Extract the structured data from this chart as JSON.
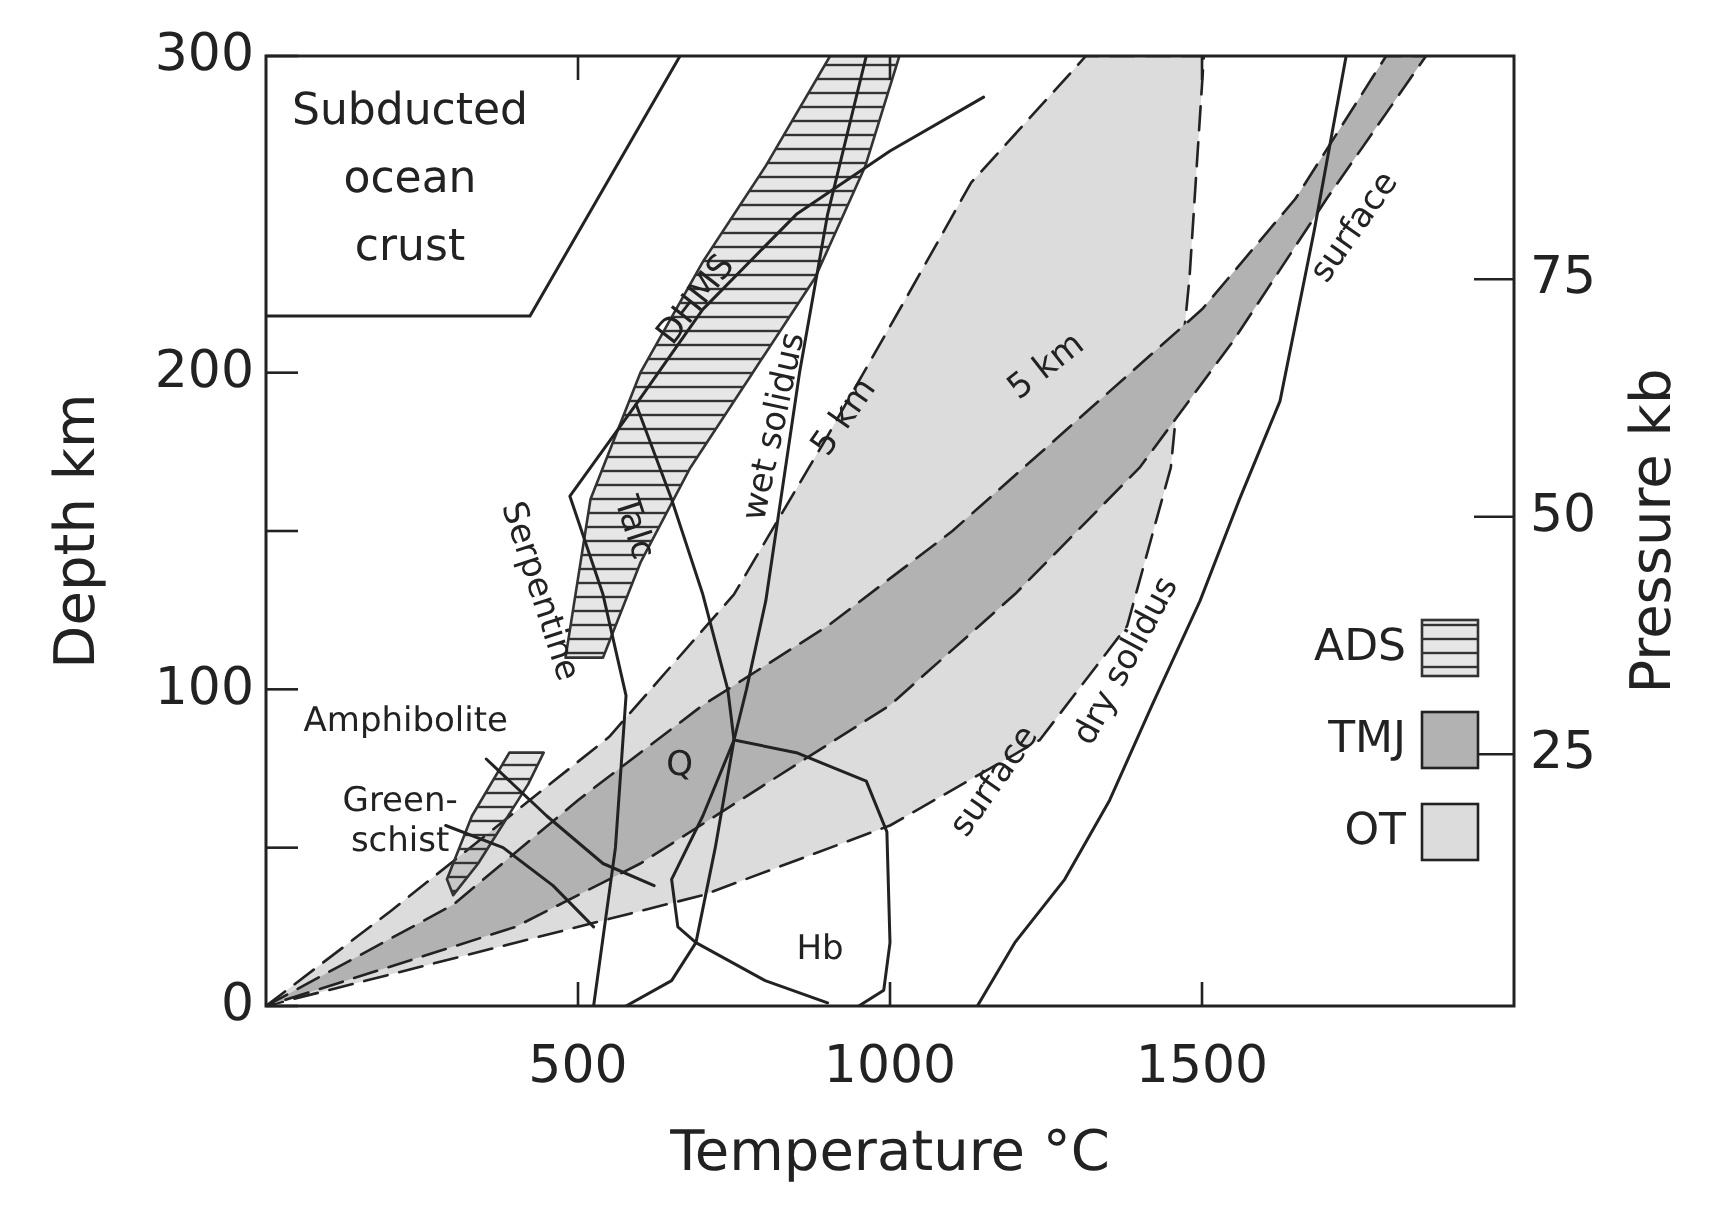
{
  "chart_data": {
    "type": "line",
    "xlabel": "Temperature °C",
    "ylabel": "Depth km",
    "y2label": "Pressure kb",
    "xlim": [
      0,
      2000
    ],
    "xticks": [
      500,
      1000,
      1500
    ],
    "ylim": [
      0,
      300
    ],
    "yticks": [
      0,
      {
        "value": 50,
        "label": null
      },
      100,
      {
        "value": 150,
        "label": null
      },
      200,
      300
    ],
    "y2lim": [
      -1.5,
      98.5
    ],
    "y2ticks": [
      25,
      50,
      75
    ],
    "legend": "right",
    "series": [
      {
        "name": "OT",
        "type": "area",
        "color": "#dcdcdc",
        "line_style": "dashed",
        "x": [
          0,
          200,
          550,
          750,
          900,
          1030,
          1130,
          1314,
          1503,
          1480,
          1450,
          1380,
          1240,
          1000,
          700,
          400,
          0
        ],
        "values": [
          0,
          30,
          85,
          130,
          180,
          225,
          260,
          300,
          300,
          230,
          170,
          120,
          84,
          57,
          35,
          20,
          0
        ]
      },
      {
        "name": "TMJ",
        "type": "area",
        "color": "#b2b2b2",
        "line_style": "dashed",
        "x": [
          0,
          300,
          500,
          700,
          900,
          1100,
          1300,
          1500,
          1650,
          1795,
          1859,
          1700,
          1550,
          1400,
          1200,
          1000,
          800,
          600,
          400,
          0
        ],
        "values": [
          0,
          32,
          65,
          95,
          120,
          150,
          185,
          220,
          255,
          300,
          300,
          255,
          210,
          170,
          130,
          95,
          70,
          45,
          25,
          0
        ]
      },
      {
        "name": "ADS",
        "type": "area",
        "color": "#333333",
        "line_style": "solid",
        "x": [
          480,
          520,
          600,
          700,
          800,
          904,
          1015,
          960,
          880,
          780,
          680,
          600,
          540,
          480,
          null,
          300,
          340,
          420,
          445,
          390,
          330,
          290,
          300
        ],
        "values": [
          110,
          160,
          200,
          235,
          265,
          300,
          300,
          265,
          230,
          200,
          170,
          140,
          110,
          110,
          null,
          35,
          45,
          70,
          80,
          80,
          60,
          40,
          35
        ]
      },
      {
        "color": "#222222",
        "x": [
          1140,
          1200,
          1280,
          1352,
          1420,
          1497,
          1560,
          1625,
          1680,
          1731
        ],
        "values": [
          0,
          20,
          40,
          65,
          95,
          128,
          160,
          191,
          245,
          300
        ]
      },
      {
        "color": "#222222",
        "x": [
          577,
          650,
          689,
          720,
          750,
          770,
          801,
          855,
          900,
          962
        ],
        "values": [
          0,
          8,
          20,
          50,
          84,
          100,
          128,
          200,
          250,
          300
        ]
      },
      {
        "color": "#222222",
        "x": [
          1150,
          1000,
          850,
          700,
          593,
          487,
          540,
          577,
          560,
          525
        ],
        "values": [
          287,
          270,
          250,
          220,
          190,
          161,
          130,
          98,
          50,
          0
        ]
      },
      {
        "color": "#222222",
        "x": [
          593,
          650,
          700,
          740,
          750,
          850,
          962,
          995,
          1000,
          990,
          950
        ],
        "values": [
          190,
          160,
          130,
          100,
          84,
          80,
          71,
          55,
          20,
          5,
          0
        ]
      },
      {
        "color": "#222222",
        "x": [
          750,
          700,
          650,
          660,
          689,
          800,
          900
        ],
        "values": [
          84,
          60,
          40,
          25,
          20,
          8,
          1
        ]
      },
      {
        "color": "#222222",
        "x": [
          353,
          450,
          540,
          622
        ],
        "values": [
          78,
          60,
          45,
          38
        ]
      },
      {
        "color": "#222222",
        "x": [
          288,
          380,
          460,
          525
        ],
        "values": [
          57,
          50,
          38,
          25
        ]
      }
    ],
    "annotations": [
      "Subducted ocean crust",
      "DHMS",
      "wet solidus",
      "5 km",
      "5 km",
      "surface",
      "surface",
      "dry solidus",
      "Talc",
      "Serpentine",
      "Amphibolite",
      "Green-schist",
      "Q",
      "Hb"
    ]
  }
}
